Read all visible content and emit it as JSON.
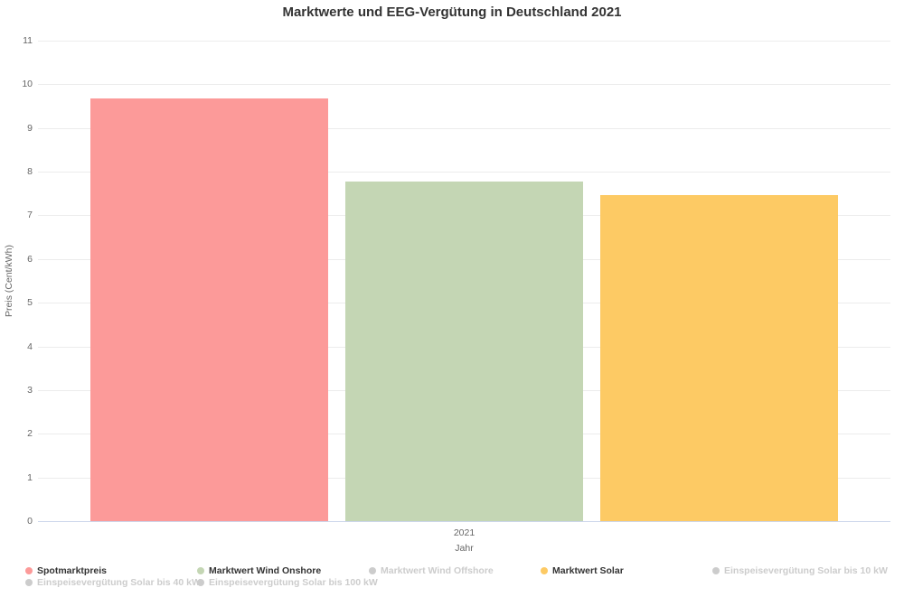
{
  "title": "Marktwerte und EEG-Vergütung in Deutschland 2021",
  "chart_data": {
    "type": "bar",
    "title": "Marktwerte und EEG-Vergütung in Deutschland 2021",
    "categories": [
      "2021"
    ],
    "xlabel": "Jahr",
    "ylabel": "Preis (Cent/kWh)",
    "ylim": [
      0,
      11
    ],
    "ytick_step": 1,
    "grid": true,
    "legend_position": "bottom",
    "disabled_color": "#cccccc",
    "axis_line_color": "#ccd6eb",
    "grid_color": "#ececec",
    "series": [
      {
        "name": "Spotmarktpreis",
        "values": [
          9.68
        ],
        "color": "#fc9a99",
        "visible": true
      },
      {
        "name": "Marktwert Wind Onshore",
        "values": [
          7.78
        ],
        "color": "#c4d6b4",
        "visible": true
      },
      {
        "name": "Marktwert Wind Offshore",
        "values": [],
        "color": "#cccccc",
        "visible": false
      },
      {
        "name": "Marktwert Solar",
        "values": [
          7.47
        ],
        "color": "#fdca64",
        "visible": true
      },
      {
        "name": "Einspeisevergütung Solar bis 10 kW",
        "values": [],
        "color": "#cccccc",
        "visible": false
      },
      {
        "name": "Einspeisevergütung Solar bis 40 kW",
        "values": [],
        "color": "#cccccc",
        "visible": false
      },
      {
        "name": "Einspeisevergütung Solar bis 100 kW",
        "values": [],
        "color": "#cccccc",
        "visible": false
      }
    ]
  }
}
